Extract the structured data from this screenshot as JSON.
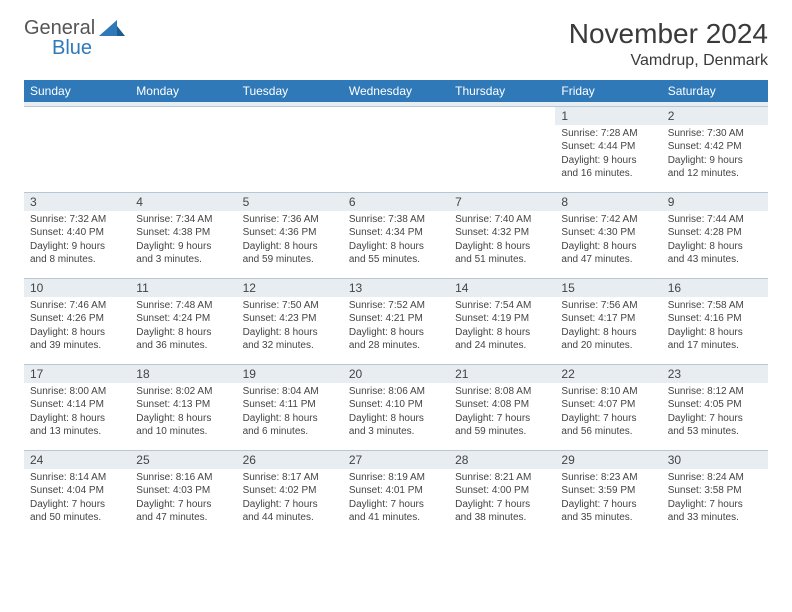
{
  "brand": {
    "top": "General",
    "bottom": "Blue"
  },
  "title": "November 2024",
  "location": "Vamdrup, Denmark",
  "columns": [
    "Sunday",
    "Monday",
    "Tuesday",
    "Wednesday",
    "Thursday",
    "Friday",
    "Saturday"
  ],
  "colors": {
    "header_bg": "#2f79b9",
    "header_fg": "#ffffff",
    "daynum_bg": "#e8edf1",
    "border": "#b8c7d6",
    "text": "#444444"
  },
  "weeks": [
    [
      {
        "empty": true
      },
      {
        "empty": true
      },
      {
        "empty": true
      },
      {
        "empty": true
      },
      {
        "empty": true
      },
      {
        "n": "1",
        "sr": "7:28 AM",
        "ss": "4:44 PM",
        "dl": "9 hours and 16 minutes."
      },
      {
        "n": "2",
        "sr": "7:30 AM",
        "ss": "4:42 PM",
        "dl": "9 hours and 12 minutes."
      }
    ],
    [
      {
        "n": "3",
        "sr": "7:32 AM",
        "ss": "4:40 PM",
        "dl": "9 hours and 8 minutes."
      },
      {
        "n": "4",
        "sr": "7:34 AM",
        "ss": "4:38 PM",
        "dl": "9 hours and 3 minutes."
      },
      {
        "n": "5",
        "sr": "7:36 AM",
        "ss": "4:36 PM",
        "dl": "8 hours and 59 minutes."
      },
      {
        "n": "6",
        "sr": "7:38 AM",
        "ss": "4:34 PM",
        "dl": "8 hours and 55 minutes."
      },
      {
        "n": "7",
        "sr": "7:40 AM",
        "ss": "4:32 PM",
        "dl": "8 hours and 51 minutes."
      },
      {
        "n": "8",
        "sr": "7:42 AM",
        "ss": "4:30 PM",
        "dl": "8 hours and 47 minutes."
      },
      {
        "n": "9",
        "sr": "7:44 AM",
        "ss": "4:28 PM",
        "dl": "8 hours and 43 minutes."
      }
    ],
    [
      {
        "n": "10",
        "sr": "7:46 AM",
        "ss": "4:26 PM",
        "dl": "8 hours and 39 minutes."
      },
      {
        "n": "11",
        "sr": "7:48 AM",
        "ss": "4:24 PM",
        "dl": "8 hours and 36 minutes."
      },
      {
        "n": "12",
        "sr": "7:50 AM",
        "ss": "4:23 PM",
        "dl": "8 hours and 32 minutes."
      },
      {
        "n": "13",
        "sr": "7:52 AM",
        "ss": "4:21 PM",
        "dl": "8 hours and 28 minutes."
      },
      {
        "n": "14",
        "sr": "7:54 AM",
        "ss": "4:19 PM",
        "dl": "8 hours and 24 minutes."
      },
      {
        "n": "15",
        "sr": "7:56 AM",
        "ss": "4:17 PM",
        "dl": "8 hours and 20 minutes."
      },
      {
        "n": "16",
        "sr": "7:58 AM",
        "ss": "4:16 PM",
        "dl": "8 hours and 17 minutes."
      }
    ],
    [
      {
        "n": "17",
        "sr": "8:00 AM",
        "ss": "4:14 PM",
        "dl": "8 hours and 13 minutes."
      },
      {
        "n": "18",
        "sr": "8:02 AM",
        "ss": "4:13 PM",
        "dl": "8 hours and 10 minutes."
      },
      {
        "n": "19",
        "sr": "8:04 AM",
        "ss": "4:11 PM",
        "dl": "8 hours and 6 minutes."
      },
      {
        "n": "20",
        "sr": "8:06 AM",
        "ss": "4:10 PM",
        "dl": "8 hours and 3 minutes."
      },
      {
        "n": "21",
        "sr": "8:08 AM",
        "ss": "4:08 PM",
        "dl": "7 hours and 59 minutes."
      },
      {
        "n": "22",
        "sr": "8:10 AM",
        "ss": "4:07 PM",
        "dl": "7 hours and 56 minutes."
      },
      {
        "n": "23",
        "sr": "8:12 AM",
        "ss": "4:05 PM",
        "dl": "7 hours and 53 minutes."
      }
    ],
    [
      {
        "n": "24",
        "sr": "8:14 AM",
        "ss": "4:04 PM",
        "dl": "7 hours and 50 minutes."
      },
      {
        "n": "25",
        "sr": "8:16 AM",
        "ss": "4:03 PM",
        "dl": "7 hours and 47 minutes."
      },
      {
        "n": "26",
        "sr": "8:17 AM",
        "ss": "4:02 PM",
        "dl": "7 hours and 44 minutes."
      },
      {
        "n": "27",
        "sr": "8:19 AM",
        "ss": "4:01 PM",
        "dl": "7 hours and 41 minutes."
      },
      {
        "n": "28",
        "sr": "8:21 AM",
        "ss": "4:00 PM",
        "dl": "7 hours and 38 minutes."
      },
      {
        "n": "29",
        "sr": "8:23 AM",
        "ss": "3:59 PM",
        "dl": "7 hours and 35 minutes."
      },
      {
        "n": "30",
        "sr": "8:24 AM",
        "ss": "3:58 PM",
        "dl": "7 hours and 33 minutes."
      }
    ]
  ],
  "labels": {
    "sunrise": "Sunrise:",
    "sunset": "Sunset:",
    "daylight": "Daylight:"
  }
}
